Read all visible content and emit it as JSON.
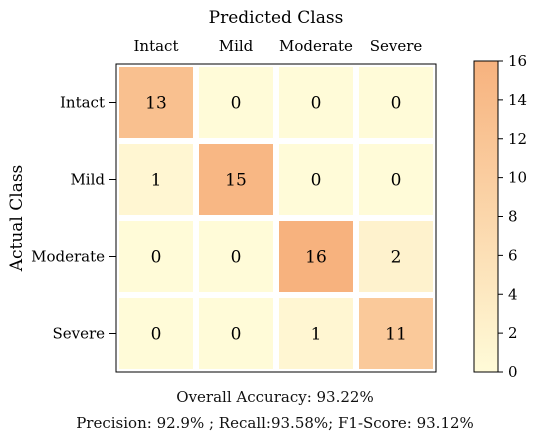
{
  "chart_data": {
    "type": "heatmap",
    "xlabel": "Predicted Class",
    "ylabel": "Actual Class",
    "x_categories": [
      "Intact",
      "Mild",
      "Moderate",
      "Severe"
    ],
    "y_categories": [
      "Intact",
      "Mild",
      "Moderate",
      "Severe"
    ],
    "values": [
      [
        13,
        0,
        0,
        0
      ],
      [
        1,
        15,
        0,
        0
      ],
      [
        0,
        0,
        16,
        2
      ],
      [
        0,
        0,
        1,
        11
      ]
    ],
    "colorbar": {
      "range": [
        0,
        16
      ],
      "ticks": [
        "0",
        "2",
        "4",
        "6",
        "8",
        "10",
        "12",
        "14",
        "16"
      ],
      "color_low": "#fffbd8",
      "color_high": "#f7b27e"
    }
  },
  "captions": {
    "accuracy": "Overall Accuracy: 93.22%",
    "metrics": "Precision: 92.9% ; Recall:93.58%; F1-Score: 93.12%"
  }
}
